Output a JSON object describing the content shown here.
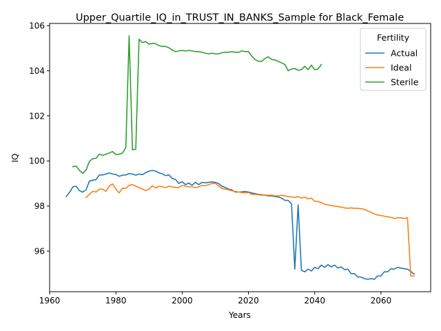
{
  "chart_data": {
    "type": "line",
    "title": "Upper_Quartile_IQ_in_TRUST_IN_BANKS_Sample for Black_Female",
    "xlabel": "Years",
    "ylabel": "IQ",
    "xlim": [
      1960,
      2075
    ],
    "ylim": [
      94.2,
      106.1
    ],
    "xticks": [
      1960,
      1980,
      2000,
      2020,
      2040,
      2060
    ],
    "yticks": [
      96,
      98,
      100,
      102,
      104,
      106
    ],
    "grid": false,
    "legend": {
      "title": "Fertility",
      "placement": "top-right"
    },
    "series": [
      {
        "name": "Actual",
        "color": "#1f77b4",
        "x": [
          1965,
          1966,
          1967,
          1968,
          1969,
          1970,
          1971,
          1972,
          1973,
          1974,
          1975,
          1976,
          1977,
          1978,
          1979,
          1980,
          1981,
          1982,
          1983,
          1984,
          1985,
          1986,
          1987,
          1988,
          1989,
          1990,
          1991,
          1992,
          1993,
          1994,
          1995,
          1996,
          1997,
          1998,
          1999,
          2000,
          2001,
          2002,
          2003,
          2004,
          2005,
          2006,
          2007,
          2008,
          2009,
          2010,
          2011,
          2012,
          2013,
          2014,
          2015,
          2016,
          2017,
          2018,
          2019,
          2020,
          2021,
          2022,
          2023,
          2024,
          2025,
          2026,
          2027,
          2028,
          2029,
          2030,
          2031,
          2032,
          2033,
          2034,
          2035,
          2036,
          2037,
          2038,
          2039,
          2040,
          2041,
          2042,
          2043,
          2044,
          2045,
          2046,
          2047,
          2048,
          2049,
          2050,
          2051,
          2052,
          2053,
          2054,
          2055,
          2056,
          2057,
          2058,
          2059,
          2060,
          2061,
          2062,
          2063,
          2064,
          2065,
          2066,
          2067,
          2068,
          2069,
          2070
        ],
        "y": [
          98.42,
          98.6,
          98.85,
          98.88,
          98.68,
          98.62,
          98.72,
          99.1,
          99.15,
          99.17,
          99.38,
          99.38,
          99.42,
          99.47,
          99.42,
          99.4,
          99.32,
          99.37,
          99.38,
          99.44,
          99.42,
          99.37,
          99.42,
          99.39,
          99.48,
          99.55,
          99.58,
          99.55,
          99.47,
          99.43,
          99.35,
          99.38,
          99.22,
          99.18,
          99.0,
          99.08,
          98.95,
          99.02,
          98.92,
          99.05,
          98.95,
          99.05,
          99.03,
          99.05,
          99.07,
          99.05,
          99.0,
          98.88,
          98.82,
          98.75,
          98.72,
          98.62,
          98.62,
          98.63,
          98.65,
          98.62,
          98.58,
          98.55,
          98.52,
          98.5,
          98.48,
          98.45,
          98.45,
          98.42,
          98.4,
          98.35,
          98.25,
          98.25,
          98.1,
          95.2,
          98.05,
          95.15,
          95.08,
          95.2,
          95.12,
          95.28,
          95.22,
          95.38,
          95.28,
          95.4,
          95.3,
          95.38,
          95.25,
          95.3,
          95.18,
          95.2,
          95.0,
          95.0,
          94.85,
          94.85,
          94.78,
          94.75,
          94.78,
          94.75,
          94.9,
          94.9,
          95.08,
          95.08,
          95.22,
          95.2,
          95.28,
          95.25,
          95.22,
          95.2,
          95.1,
          94.98
        ]
      },
      {
        "name": "Ideal",
        "color": "#ff7f0e",
        "x": [
          1971,
          1972,
          1973,
          1974,
          1975,
          1976,
          1977,
          1978,
          1979,
          1980,
          1981,
          1982,
          1983,
          1984,
          1985,
          1986,
          1987,
          1988,
          1989,
          1990,
          1991,
          1992,
          1993,
          1994,
          1995,
          1996,
          1997,
          1998,
          1999,
          2000,
          2001,
          2002,
          2003,
          2004,
          2005,
          2006,
          2007,
          2008,
          2009,
          2010,
          2011,
          2012,
          2013,
          2014,
          2015,
          2016,
          2017,
          2018,
          2019,
          2020,
          2021,
          2022,
          2023,
          2024,
          2025,
          2026,
          2027,
          2028,
          2029,
          2030,
          2031,
          2032,
          2033,
          2034,
          2035,
          2036,
          2037,
          2038,
          2039,
          2040,
          2041,
          2042,
          2043,
          2044,
          2045,
          2046,
          2047,
          2048,
          2049,
          2050,
          2051,
          2052,
          2053,
          2054,
          2055,
          2056,
          2057,
          2058,
          2059,
          2060,
          2061,
          2062,
          2063,
          2064,
          2065,
          2066,
          2067,
          2068,
          2069,
          2070
        ],
        "y": [
          98.38,
          98.52,
          98.65,
          98.62,
          98.75,
          98.75,
          98.65,
          98.88,
          98.98,
          98.75,
          98.58,
          98.8,
          98.78,
          98.92,
          98.95,
          98.88,
          98.82,
          98.75,
          98.68,
          98.75,
          98.9,
          98.8,
          98.88,
          98.85,
          98.82,
          98.88,
          98.85,
          98.82,
          98.82,
          98.92,
          98.88,
          98.85,
          98.85,
          98.82,
          98.85,
          98.92,
          98.9,
          98.95,
          99.0,
          99.0,
          98.9,
          98.78,
          98.75,
          98.72,
          98.68,
          98.65,
          98.62,
          98.6,
          98.58,
          98.6,
          98.52,
          98.52,
          98.5,
          98.48,
          98.48,
          98.48,
          98.48,
          98.45,
          98.45,
          98.48,
          98.45,
          98.42,
          98.4,
          98.38,
          98.42,
          98.35,
          98.4,
          98.32,
          98.35,
          98.22,
          98.2,
          98.15,
          98.08,
          98.05,
          98.02,
          98.0,
          97.98,
          97.95,
          97.92,
          97.9,
          97.92,
          97.9,
          97.9,
          97.88,
          97.85,
          97.78,
          97.72,
          97.65,
          97.6,
          97.58,
          97.55,
          97.52,
          97.5,
          97.45,
          97.48,
          97.48,
          97.45,
          97.48,
          94.9,
          94.9
        ]
      },
      {
        "name": "Sterile",
        "color": "#2ca02c",
        "x": [
          1967,
          1968,
          1969,
          1970,
          1971,
          1972,
          1973,
          1974,
          1975,
          1976,
          1977,
          1978,
          1979,
          1980,
          1981,
          1982,
          1983,
          1984,
          1985,
          1986,
          1987,
          1988,
          1989,
          1990,
          1991,
          1992,
          1993,
          1994,
          1995,
          1996,
          1997,
          1998,
          1999,
          2000,
          2001,
          2002,
          2003,
          2004,
          2005,
          2006,
          2007,
          2008,
          2009,
          2010,
          2011,
          2012,
          2013,
          2014,
          2015,
          2016,
          2017,
          2018,
          2019,
          2020,
          2021,
          2022,
          2023,
          2024,
          2025,
          2026,
          2027,
          2028,
          2029,
          2030,
          2031,
          2032,
          2033,
          2034,
          2035,
          2036,
          2037,
          2038,
          2039,
          2040,
          2041,
          2042
        ],
        "y": [
          99.75,
          99.77,
          99.58,
          99.45,
          99.6,
          99.98,
          100.1,
          100.12,
          100.3,
          100.25,
          100.3,
          100.35,
          100.42,
          100.28,
          100.3,
          100.35,
          100.6,
          105.55,
          100.5,
          100.52,
          105.4,
          105.25,
          105.3,
          105.18,
          105.22,
          105.2,
          105.12,
          105.08,
          105.08,
          105.02,
          104.92,
          104.85,
          104.88,
          104.9,
          104.88,
          104.9,
          104.88,
          104.85,
          104.85,
          104.82,
          104.78,
          104.75,
          104.78,
          104.75,
          104.75,
          104.8,
          104.82,
          104.82,
          104.85,
          104.82,
          104.82,
          104.88,
          104.85,
          104.85,
          104.65,
          104.5,
          104.42,
          104.42,
          104.55,
          104.62,
          104.5,
          104.48,
          104.42,
          104.35,
          104.28,
          104.0,
          104.08,
          104.1,
          104.02,
          104.05,
          104.2,
          104.05,
          104.25,
          104.05,
          104.08,
          104.28
        ]
      }
    ]
  }
}
